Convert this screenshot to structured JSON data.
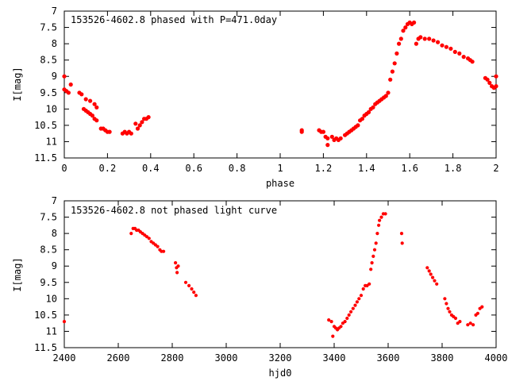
{
  "chart_data": [
    {
      "type": "scatter",
      "title": "153526-4602.8 phased with P=471.0day",
      "xlabel": "phase",
      "ylabel": "I[mag]",
      "xlim": [
        0,
        2
      ],
      "ylim": [
        11.5,
        7
      ],
      "y_inverted": true,
      "grid": false,
      "legend": "none",
      "marker_color": "#ff0000",
      "x_ticks": [
        "0",
        "0.2",
        "0.4",
        "0.6",
        "0.8",
        "1",
        "1.2",
        "1.4",
        "1.6",
        "1.8",
        "2"
      ],
      "y_ticks": [
        "7",
        "7.5",
        "8",
        "8.5",
        "9",
        "9.5",
        "10",
        "10.5",
        "11",
        "11.5"
      ],
      "points": [
        [
          0.0,
          9.0
        ],
        [
          0.0,
          9.4
        ],
        [
          0.01,
          9.45
        ],
        [
          0.02,
          9.5
        ],
        [
          0.03,
          9.25
        ],
        [
          0.07,
          9.5
        ],
        [
          0.08,
          9.55
        ],
        [
          0.09,
          10.0
        ],
        [
          0.1,
          10.05
        ],
        [
          0.1,
          9.7
        ],
        [
          0.11,
          10.1
        ],
        [
          0.12,
          10.15
        ],
        [
          0.12,
          9.75
        ],
        [
          0.13,
          10.2
        ],
        [
          0.14,
          10.3
        ],
        [
          0.14,
          9.85
        ],
        [
          0.15,
          9.95
        ],
        [
          0.15,
          10.35
        ],
        [
          0.17,
          10.6
        ],
        [
          0.18,
          10.6
        ],
        [
          0.19,
          10.65
        ],
        [
          0.2,
          10.7
        ],
        [
          0.21,
          10.7
        ],
        [
          0.27,
          10.75
        ],
        [
          0.28,
          10.7
        ],
        [
          0.29,
          10.75
        ],
        [
          0.3,
          10.7
        ],
        [
          0.31,
          10.75
        ],
        [
          0.33,
          10.45
        ],
        [
          0.34,
          10.6
        ],
        [
          0.35,
          10.5
        ],
        [
          0.36,
          10.4
        ],
        [
          0.37,
          10.3
        ],
        [
          0.38,
          10.3
        ],
        [
          0.39,
          10.25
        ],
        [
          1.1,
          10.65
        ],
        [
          1.1,
          10.7
        ],
        [
          1.18,
          10.65
        ],
        [
          1.19,
          10.7
        ],
        [
          1.2,
          10.7
        ],
        [
          1.21,
          10.85
        ],
        [
          1.22,
          10.9
        ],
        [
          1.22,
          11.1
        ],
        [
          1.24,
          10.85
        ],
        [
          1.25,
          10.95
        ],
        [
          1.26,
          10.9
        ],
        [
          1.27,
          10.95
        ],
        [
          1.28,
          10.9
        ],
        [
          1.3,
          10.8
        ],
        [
          1.31,
          10.75
        ],
        [
          1.32,
          10.7
        ],
        [
          1.33,
          10.65
        ],
        [
          1.34,
          10.6
        ],
        [
          1.35,
          10.55
        ],
        [
          1.36,
          10.5
        ],
        [
          1.37,
          10.35
        ],
        [
          1.38,
          10.3
        ],
        [
          1.39,
          10.2
        ],
        [
          1.4,
          10.15
        ],
        [
          1.41,
          10.1
        ],
        [
          1.42,
          10.0
        ],
        [
          1.43,
          9.95
        ],
        [
          1.44,
          9.85
        ],
        [
          1.45,
          9.8
        ],
        [
          1.46,
          9.75
        ],
        [
          1.47,
          9.7
        ],
        [
          1.48,
          9.65
        ],
        [
          1.49,
          9.6
        ],
        [
          1.5,
          9.5
        ],
        [
          1.51,
          9.1
        ],
        [
          1.52,
          8.85
        ],
        [
          1.53,
          8.6
        ],
        [
          1.54,
          8.3
        ],
        [
          1.55,
          8.0
        ],
        [
          1.56,
          7.85
        ],
        [
          1.57,
          7.6
        ],
        [
          1.58,
          7.5
        ],
        [
          1.59,
          7.4
        ],
        [
          1.6,
          7.35
        ],
        [
          1.61,
          7.4
        ],
        [
          1.62,
          7.35
        ],
        [
          1.63,
          8.0
        ],
        [
          1.64,
          7.85
        ],
        [
          1.65,
          7.8
        ],
        [
          1.67,
          7.85
        ],
        [
          1.69,
          7.85
        ],
        [
          1.71,
          7.9
        ],
        [
          1.73,
          7.95
        ],
        [
          1.75,
          8.05
        ],
        [
          1.77,
          8.1
        ],
        [
          1.79,
          8.15
        ],
        [
          1.81,
          8.25
        ],
        [
          1.83,
          8.3
        ],
        [
          1.85,
          8.4
        ],
        [
          1.87,
          8.45
        ],
        [
          1.88,
          8.5
        ],
        [
          1.89,
          8.55
        ],
        [
          1.95,
          9.05
        ],
        [
          1.96,
          9.1
        ],
        [
          1.97,
          9.2
        ],
        [
          1.98,
          9.3
        ],
        [
          1.99,
          9.35
        ],
        [
          2.0,
          9.0
        ],
        [
          2.0,
          9.3
        ]
      ]
    },
    {
      "type": "scatter",
      "title": "153526-4602.8 not phased light curve",
      "xlabel": "hjd0",
      "ylabel": "I[mag]",
      "xlim": [
        2400,
        4000
      ],
      "ylim": [
        11.5,
        7
      ],
      "y_inverted": true,
      "grid": false,
      "legend": "none",
      "marker_color": "#ff0000",
      "x_ticks": [
        "2400",
        "2600",
        "2800",
        "3000",
        "3200",
        "3400",
        "3600",
        "3800",
        "4000"
      ],
      "y_ticks": [
        "7",
        "7.5",
        "8",
        "8.5",
        "9",
        "9.5",
        "10",
        "10.5",
        "11",
        "11.5"
      ],
      "points": [
        [
          2400,
          10.7
        ],
        [
          2648,
          8.0
        ],
        [
          2655,
          7.85
        ],
        [
          2662,
          7.85
        ],
        [
          2668,
          7.9
        ],
        [
          2675,
          7.9
        ],
        [
          2682,
          7.95
        ],
        [
          2690,
          8.0
        ],
        [
          2698,
          8.05
        ],
        [
          2706,
          8.1
        ],
        [
          2714,
          8.15
        ],
        [
          2722,
          8.25
        ],
        [
          2730,
          8.3
        ],
        [
          2738,
          8.35
        ],
        [
          2746,
          8.4
        ],
        [
          2754,
          8.5
        ],
        [
          2760,
          8.55
        ],
        [
          2768,
          8.55
        ],
        [
          2812,
          8.9
        ],
        [
          2816,
          9.05
        ],
        [
          2818,
          9.2
        ],
        [
          2822,
          9.0
        ],
        [
          2850,
          9.5
        ],
        [
          2862,
          9.6
        ],
        [
          2872,
          9.7
        ],
        [
          2880,
          9.8
        ],
        [
          2888,
          9.9
        ],
        [
          3380,
          10.65
        ],
        [
          3390,
          10.7
        ],
        [
          3395,
          11.15
        ],
        [
          3400,
          10.85
        ],
        [
          3406,
          10.9
        ],
        [
          3412,
          10.95
        ],
        [
          3418,
          10.9
        ],
        [
          3425,
          10.85
        ],
        [
          3432,
          10.75
        ],
        [
          3440,
          10.7
        ],
        [
          3448,
          10.6
        ],
        [
          3455,
          10.5
        ],
        [
          3462,
          10.4
        ],
        [
          3470,
          10.3
        ],
        [
          3478,
          10.2
        ],
        [
          3485,
          10.1
        ],
        [
          3492,
          10.0
        ],
        [
          3500,
          9.9
        ],
        [
          3508,
          9.7
        ],
        [
          3515,
          9.6
        ],
        [
          3522,
          9.6
        ],
        [
          3530,
          9.55
        ],
        [
          3536,
          9.1
        ],
        [
          3540,
          8.9
        ],
        [
          3545,
          8.7
        ],
        [
          3550,
          8.5
        ],
        [
          3555,
          8.3
        ],
        [
          3560,
          8.0
        ],
        [
          3565,
          7.75
        ],
        [
          3568,
          7.6
        ],
        [
          3575,
          7.5
        ],
        [
          3582,
          7.4
        ],
        [
          3590,
          7.4
        ],
        [
          3650,
          8.0
        ],
        [
          3652,
          8.3
        ],
        [
          3745,
          9.05
        ],
        [
          3752,
          9.15
        ],
        [
          3758,
          9.25
        ],
        [
          3765,
          9.35
        ],
        [
          3772,
          9.45
        ],
        [
          3780,
          9.55
        ],
        [
          3810,
          10.0
        ],
        [
          3816,
          10.15
        ],
        [
          3822,
          10.3
        ],
        [
          3828,
          10.4
        ],
        [
          3835,
          10.5
        ],
        [
          3842,
          10.55
        ],
        [
          3850,
          10.6
        ],
        [
          3858,
          10.75
        ],
        [
          3866,
          10.7
        ],
        [
          3895,
          10.8
        ],
        [
          3905,
          10.75
        ],
        [
          3915,
          10.8
        ],
        [
          3925,
          10.5
        ],
        [
          3932,
          10.45
        ],
        [
          3940,
          10.3
        ],
        [
          3948,
          10.25
        ]
      ]
    }
  ]
}
